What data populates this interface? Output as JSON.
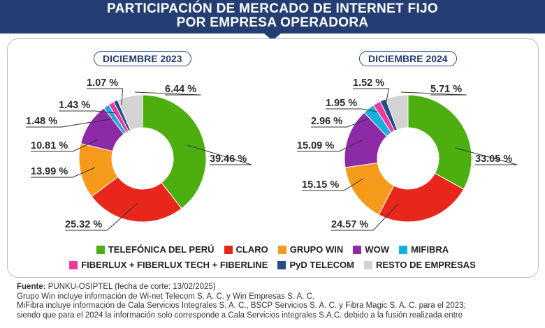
{
  "title_line1": "PARTICIPACIÓN DE MERCADO DE INTERNET FIJO",
  "title_line2": "POR EMPRESA OPERADORA",
  "legend": [
    {
      "label": "TELEFÓNICA DEL PERÚ",
      "color": "#4daf0f"
    },
    {
      "label": "CLARO",
      "color": "#e8261b"
    },
    {
      "label": "GRUPO WIN",
      "color": "#f59a1b"
    },
    {
      "label": "WOW",
      "color": "#8c2aa8"
    },
    {
      "label": "MIFIBRA",
      "color": "#19aee0"
    },
    {
      "label": "FIBERLUX + FIBERLUX TECH + FIBERLINE",
      "color": "#ee3aa0"
    },
    {
      "label": "PyD TELECOM",
      "color": "#234f86"
    },
    {
      "label": "RESTO DE EMPRESAS",
      "color": "#d3d3d3"
    }
  ],
  "chart_data": [
    {
      "type": "pie",
      "title": "DICIEMBRE 2023",
      "categories": [
        "TELEFÓNICA DEL PERÚ",
        "CLARO",
        "GRUPO WIN",
        "WOW",
        "MIFIBRA",
        "FIBERLUX + FIBERLUX TECH + FIBERLINE",
        "PyD TELECOM",
        "RESTO DE EMPRESAS"
      ],
      "values": [
        39.46,
        25.32,
        13.99,
        10.81,
        1.48,
        1.43,
        1.07,
        6.44
      ],
      "labels": [
        "39.46 %",
        "25.32 %",
        "13.99 %",
        "10.81 %",
        "1.48 %",
        "1.43 %",
        "1.07 %",
        "6.44 %"
      ]
    },
    {
      "type": "pie",
      "title": "DICIEMBRE 2024",
      "categories": [
        "TELEFÓNICA DEL PERÚ",
        "CLARO",
        "GRUPO WIN",
        "WOW",
        "MIFIBRA",
        "FIBERLUX + FIBERLUX TECH + FIBERLINE",
        "PyD TELECOM",
        "RESTO DE EMPRESAS"
      ],
      "values": [
        33.05,
        24.57,
        15.09,
        15.15,
        2.96,
        1.95,
        1.52,
        5.71
      ],
      "labels": [
        "33.05 %",
        "24.57 %",
        "15.09 %",
        "15.15 %",
        "2.96 %",
        "1.95 %",
        "1.52 %",
        "5.71 %"
      ]
    }
  ],
  "footer": {
    "source_label": "Fuente:",
    "source_text": " PUNKU-OSIPTEL (fecha de corte: 13/02/2025)",
    "note1": "Grupo Win incluye información de Wi-net Telecom S. A. C. y Win Empresas S. A. C.",
    "note2": "MiFibra incluye información de Cala Servicios Integrales S. A. C., BSCP Servicios S. A. C. y Fibra Magic S. A. C. para el 2023;",
    "note3": "siendo que para el 2024 la información solo corresponde a Cala Servicios integrales S.A.C. debido a la fusión realizada entre"
  }
}
